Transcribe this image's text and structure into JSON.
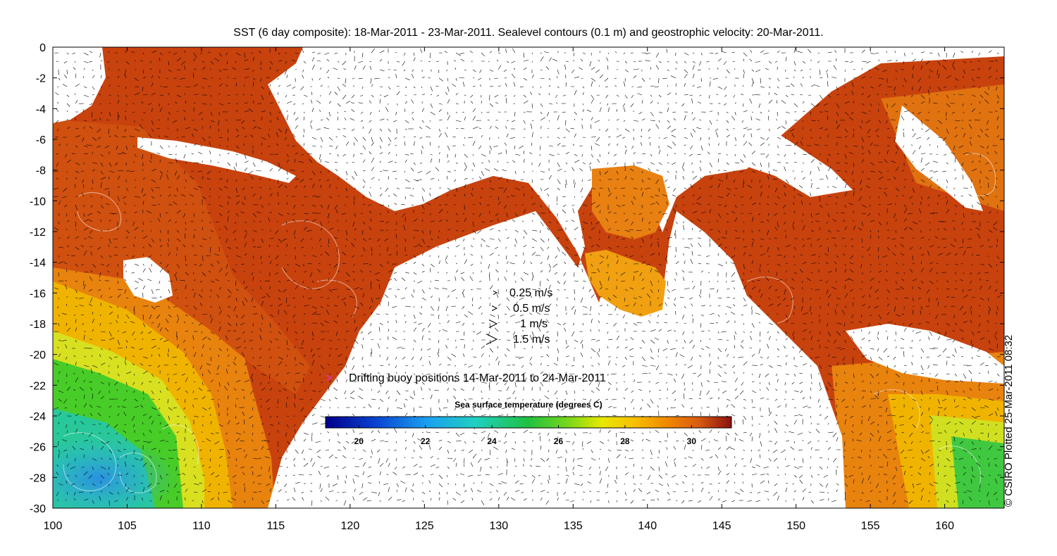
{
  "title": "SST (6 day composite): 18-Mar-2011 - 23-Mar-2011. Sealevel contours (0.1 m) and geostrophic velocity: 20-Mar-2011.",
  "credit": "© CSIRO Plotted 25-Mar-2011 08:32",
  "axes": {
    "x_ticks": [
      "100",
      "105",
      "110",
      "115",
      "120",
      "125",
      "130",
      "135",
      "140",
      "145",
      "150",
      "155",
      "160"
    ],
    "y_ticks": [
      "0",
      "-2",
      "-4",
      "-6",
      "-8",
      "-10",
      "-12",
      "-14",
      "-16",
      "-18",
      "-20",
      "-22",
      "-24",
      "-26",
      "-28",
      "-30"
    ],
    "xlim": [
      100,
      164
    ],
    "ylim": [
      -30,
      0
    ]
  },
  "velocity_legend": [
    {
      "label": "0.25 m/s",
      "speed": 0.25
    },
    {
      "label": "0.5 m/s",
      "speed": 0.5
    },
    {
      "label": "1 m/s",
      "speed": 1
    },
    {
      "label": "1.5 m/s",
      "speed": 1.5
    }
  ],
  "buoy_legend": {
    "label": "Drifting buoy positions 14-Mar-2011 to 24-Mar-2011",
    "color": "#dd33cc"
  },
  "colorbar": {
    "title": "Sea surface temperature (degrees C)",
    "ticks": [
      "20",
      "22",
      "24",
      "26",
      "28",
      "30"
    ],
    "range": [
      19,
      31.2
    ]
  },
  "colors": {
    "hot": "#c2380e",
    "warm": "#e07a10",
    "mid": "#f0b800",
    "yellow": "#d8e020",
    "green": "#44cc22",
    "teal": "#22ccaa",
    "cool": "#30a8e8",
    "land": "#ffffff"
  }
}
